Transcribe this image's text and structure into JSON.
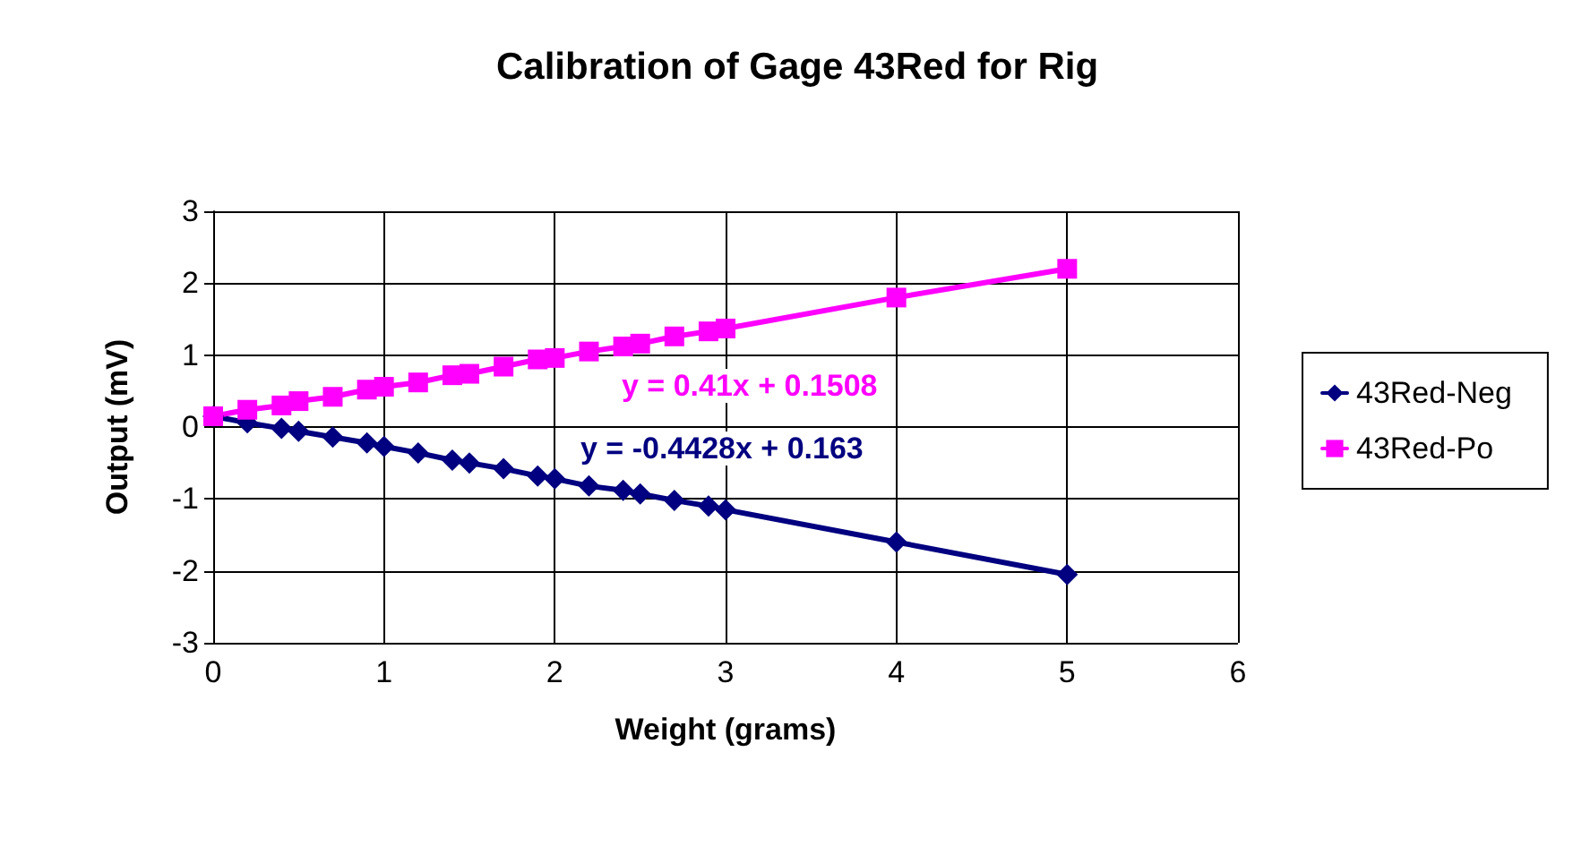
{
  "chart_data": {
    "type": "line",
    "title": "Calibration of Gage 43Red for Rig",
    "xlabel": "Weight (grams)",
    "ylabel": "Output (mV)",
    "x": [
      0,
      0.2,
      0.4,
      0.5,
      0.7,
      0.9,
      1.0,
      1.2,
      1.4,
      1.5,
      1.7,
      1.9,
      2.0,
      2.2,
      2.4,
      2.5,
      2.7,
      2.9,
      3.0,
      4,
      5
    ],
    "series": [
      {
        "name": "43Red-Neg",
        "color": "#000080",
        "marker": "diamond",
        "values": [
          0.15,
          0.06,
          -0.02,
          -0.06,
          -0.14,
          -0.22,
          -0.27,
          -0.36,
          -0.46,
          -0.5,
          -0.58,
          -0.68,
          -0.72,
          -0.82,
          -0.88,
          -0.93,
          -1.02,
          -1.1,
          -1.15,
          -1.6,
          -2.05
        ]
      },
      {
        "name": "43Red-Po",
        "color": "#ff00ff",
        "marker": "square",
        "values": [
          0.15,
          0.24,
          0.3,
          0.36,
          0.42,
          0.52,
          0.56,
          0.62,
          0.72,
          0.74,
          0.84,
          0.94,
          0.96,
          1.05,
          1.12,
          1.16,
          1.26,
          1.33,
          1.37,
          1.8,
          2.2
        ]
      }
    ],
    "annotations": [
      "y = -0.4428x + 0.163",
      "y = 0.41x + 0.1508"
    ],
    "xlim": [
      0,
      6
    ],
    "xticks": [
      0,
      1,
      2,
      3,
      4,
      5,
      6
    ],
    "ylim": [
      -3,
      3
    ],
    "yticks": [
      -3,
      -2,
      -1,
      0,
      1,
      2,
      3
    ],
    "grid": true,
    "legend": "right",
    "line_style": "solid"
  }
}
